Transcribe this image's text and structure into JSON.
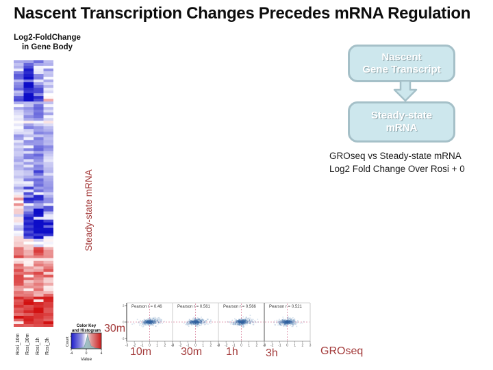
{
  "slide": {
    "title": "Nascent Transcription Changes Precedes mRNA Regulation"
  },
  "heatmap_section": {
    "label": "Log2-FoldChange\nin Gene Body",
    "columns": [
      "Rosi_10m",
      "Rosi_30m",
      "Rosi_1h",
      "Rosi_3h"
    ],
    "color_key": {
      "title_line1": "Color Key",
      "title_line2": "and Histogram",
      "xlabel": "Value",
      "ylabel": "Count",
      "x_ticks": [
        "-4",
        "0",
        "4"
      ]
    }
  },
  "flow_diagram": {
    "box_top": "Nascent\nGene Transcript",
    "box_bottom": "Steady-state\nmRNA",
    "box_fill": "#cde7ed",
    "box_border": "#a5c0c8"
  },
  "caption": {
    "text": "GROseq vs Steady-state mRNA\nLog2 Fold Change Over Rosi + 0"
  },
  "scatter_section": {
    "y_label_vertical": "Steady-state mRNA",
    "y_row_label": "30m",
    "x_labels": [
      "10m",
      "30m",
      "1h",
      "3h"
    ],
    "x_axis_name": "GROseq",
    "label_color": "#a33a3a"
  },
  "chart_data": [
    {
      "type": "heatmap",
      "title": "Log2-FoldChange in Gene Body",
      "columns": [
        "Rosi_10m",
        "Rosi_30m",
        "Rosi_1h",
        "Rosi_3h"
      ],
      "value_range": [
        -4,
        4
      ],
      "colorscale": "blue-white-red",
      "rows_approx": 97,
      "bands": [
        {
          "rows": 3,
          "mean": [
            -1.2,
            -1.6,
            -1.4,
            -0.6
          ],
          "sd": 0.5
        },
        {
          "rows": 10,
          "mean": [
            -1.6,
            -2.3,
            -1.9,
            -0.8
          ],
          "sd": 0.7
        },
        {
          "rows": 2,
          "mean": [
            -2.5,
            -2.8,
            -2.0,
            0.4
          ],
          "sd": 0.8
        },
        {
          "rows": 7,
          "mean": [
            -0.4,
            -1.0,
            -1.5,
            -0.9
          ],
          "sd": 0.5
        },
        {
          "rows": 1,
          "mean": [
            0.3,
            0.2,
            -0.4,
            0.6
          ],
          "sd": 0.3
        },
        {
          "rows": 23,
          "mean": [
            -0.7,
            -1.0,
            -1.3,
            -0.9
          ],
          "sd": 0.55
        },
        {
          "rows": 3,
          "mean": [
            -0.8,
            -2.6,
            -1.2,
            -0.9
          ],
          "sd": 0.5
        },
        {
          "rows": 7,
          "mean": [
            0.6,
            -1.8,
            -2.0,
            -1.5
          ],
          "sd": 0.8
        },
        {
          "rows": 9,
          "mean": [
            -0.2,
            -2.7,
            -2.9,
            -2.4
          ],
          "sd": 0.6
        },
        {
          "rows": 3,
          "mean": [
            0.5,
            0.3,
            -0.5,
            0.2
          ],
          "sd": 0.4
        },
        {
          "rows": 18,
          "mean": [
            1.4,
            1.1,
            1.5,
            1.2
          ],
          "sd": 0.8
        },
        {
          "rows": 11,
          "mean": [
            2.2,
            2.5,
            2.7,
            2.4
          ],
          "sd": 0.4
        }
      ]
    },
    {
      "type": "scatter",
      "panels": [
        {
          "x_label": "10m",
          "pearson_label": "Pearson r = 0.46",
          "pearson_r": 0.46
        },
        {
          "x_label": "30m",
          "pearson_label": "Pearson r = 0.561",
          "pearson_r": 0.561
        },
        {
          "x_label": "1h",
          "pearson_label": "Pearson r = 0.566",
          "pearson_r": 0.566
        },
        {
          "x_label": "3h",
          "pearson_label": "Pearson r = 0.521",
          "pearson_r": 0.521
        }
      ],
      "x_axis_ticks": [
        -3,
        -2,
        -1,
        0,
        1,
        2,
        3
      ],
      "y_axis_ticks": [
        2,
        0,
        -2
      ],
      "x_axis_name": "GROseq",
      "y_axis_name": "Steady-state mRNA 30m",
      "x_range": [
        -3,
        3
      ],
      "y_range": [
        -2.5,
        2.5
      ],
      "cloud_center": [
        0,
        0
      ],
      "points_per_panel": 300
    }
  ]
}
